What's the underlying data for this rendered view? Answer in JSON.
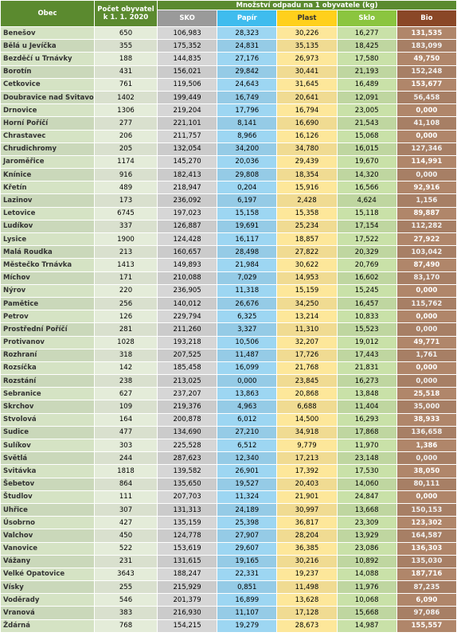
{
  "header": {
    "name": "Obec",
    "population": "Počet obyvatel k 1. 1. 2020",
    "group": "Množství odpadu na 1 obyvatele (kg)",
    "columns": [
      "SKO",
      "Papír",
      "Plast",
      "Sklo",
      "Bio"
    ]
  },
  "table": {
    "rows": [
      [
        "Benešov",
        "650",
        "106,983",
        "28,323",
        "30,226",
        "16,277",
        "131,535"
      ],
      [
        "Bělá u Jevíčka",
        "355",
        "175,352",
        "24,831",
        "35,135",
        "18,425",
        "183,099"
      ],
      [
        "Bezděčí u Trnávky",
        "188",
        "144,835",
        "27,176",
        "26,973",
        "17,580",
        "49,750"
      ],
      [
        "Borotín",
        "431",
        "156,021",
        "29,842",
        "30,441",
        "21,193",
        "152,248"
      ],
      [
        "Cetkovice",
        "761",
        "119,506",
        "24,643",
        "31,645",
        "16,489",
        "153,677"
      ],
      [
        "Doubravice nad Svitavou",
        "1402",
        "199,449",
        "16,749",
        "20,641",
        "12,091",
        "56,458"
      ],
      [
        "Drnovice",
        "1306",
        "219,204",
        "17,796",
        "16,794",
        "23,005",
        "0,000"
      ],
      [
        "Horní Poříčí",
        "277",
        "221,101",
        "8,141",
        "16,690",
        "21,543",
        "41,108"
      ],
      [
        "Chrastavec",
        "206",
        "211,757",
        "8,966",
        "16,126",
        "15,068",
        "0,000"
      ],
      [
        "Chrudichromy",
        "205",
        "132,054",
        "34,200",
        "34,780",
        "16,015",
        "127,346"
      ],
      [
        "Jaroměřice",
        "1174",
        "145,270",
        "20,036",
        "29,439",
        "19,670",
        "114,991"
      ],
      [
        "Knínice",
        "916",
        "182,413",
        "29,808",
        "18,354",
        "14,320",
        "0,000"
      ],
      [
        "Křetín",
        "489",
        "218,947",
        "0,204",
        "15,916",
        "16,566",
        "92,916"
      ],
      [
        "Lazinov",
        "173",
        "236,092",
        "6,197",
        "2,428",
        "4,624",
        "1,156"
      ],
      [
        "Letovice",
        "6745",
        "197,023",
        "15,158",
        "15,358",
        "15,118",
        "89,887"
      ],
      [
        "Ludíkov",
        "337",
        "126,887",
        "19,691",
        "25,234",
        "17,154",
        "112,282"
      ],
      [
        "Lysice",
        "1900",
        "124,428",
        "16,117",
        "18,857",
        "17,522",
        "27,922"
      ],
      [
        "Malá Roudka",
        "213",
        "160,657",
        "28,498",
        "27,822",
        "20,329",
        "103,042"
      ],
      [
        "Městečko Trnávka",
        "1413",
        "149,893",
        "21,984",
        "30,622",
        "20,769",
        "87,490"
      ],
      [
        "Míchov",
        "171",
        "210,088",
        "7,029",
        "14,953",
        "16,602",
        "83,170"
      ],
      [
        "Nýrov",
        "220",
        "236,905",
        "11,318",
        "15,159",
        "15,245",
        "0,000"
      ],
      [
        "Pamětice",
        "256",
        "140,012",
        "26,676",
        "34,250",
        "16,457",
        "115,762"
      ],
      [
        "Petrov",
        "126",
        "229,794",
        "6,325",
        "13,214",
        "10,833",
        "0,000"
      ],
      [
        "Prostřední Poříčí",
        "281",
        "211,260",
        "3,327",
        "11,310",
        "15,523",
        "0,000"
      ],
      [
        "Protivanov",
        "1028",
        "193,218",
        "10,506",
        "32,207",
        "19,012",
        "49,771"
      ],
      [
        "Rozhraní",
        "318",
        "207,525",
        "11,487",
        "17,726",
        "17,443",
        "1,761"
      ],
      [
        "Rozsíčka",
        "142",
        "185,458",
        "16,099",
        "21,768",
        "21,831",
        "0,000"
      ],
      [
        "Rozstání",
        "238",
        "213,025",
        "0,000",
        "23,845",
        "16,273",
        "0,000"
      ],
      [
        "Sebranice",
        "627",
        "237,207",
        "13,863",
        "20,868",
        "13,848",
        "25,518"
      ],
      [
        "Skrchov",
        "109",
        "219,376",
        "4,963",
        "6,688",
        "11,404",
        "35,000"
      ],
      [
        "Stvolová",
        "164",
        "200,878",
        "6,012",
        "14,500",
        "16,293",
        "38,933"
      ],
      [
        "Sudice",
        "477",
        "134,690",
        "27,210",
        "34,918",
        "17,868",
        "136,658"
      ],
      [
        "Sulíkov",
        "303",
        "225,528",
        "6,512",
        "9,779",
        "11,970",
        "1,386"
      ],
      [
        "Světlá",
        "244",
        "287,623",
        "12,340",
        "17,213",
        "23,148",
        "0,000"
      ],
      [
        "Svitávka",
        "1818",
        "139,582",
        "26,901",
        "17,392",
        "17,530",
        "38,050"
      ],
      [
        "Šebetov",
        "864",
        "135,650",
        "19,527",
        "20,403",
        "14,060",
        "80,111"
      ],
      [
        "Študlov",
        "111",
        "207,703",
        "11,324",
        "21,901",
        "24,847",
        "0,000"
      ],
      [
        "Uhřice",
        "307",
        "131,313",
        "24,189",
        "30,997",
        "13,668",
        "150,153"
      ],
      [
        "Úsobrno",
        "427",
        "135,159",
        "25,398",
        "36,817",
        "23,309",
        "123,302"
      ],
      [
        "Valchov",
        "450",
        "124,778",
        "27,907",
        "28,204",
        "13,929",
        "164,587"
      ],
      [
        "Vanovice",
        "522",
        "153,619",
        "29,607",
        "36,385",
        "23,086",
        "136,303"
      ],
      [
        "Vážany",
        "231",
        "131,615",
        "19,165",
        "30,216",
        "10,892",
        "135,030"
      ],
      [
        "Velké Opatovice",
        "3643",
        "188,247",
        "22,331",
        "19,237",
        "14,088",
        "187,716"
      ],
      [
        "Vísky",
        "255",
        "215,929",
        "0,851",
        "11,498",
        "11,976",
        "87,235"
      ],
      [
        "Voděrady",
        "546",
        "201,379",
        "16,899",
        "13,628",
        "10,068",
        "6,090"
      ],
      [
        "Vranová",
        "383",
        "216,930",
        "11,107",
        "17,128",
        "15,668",
        "97,086"
      ],
      [
        "Ždárná",
        "768",
        "154,215",
        "19,279",
        "28,673",
        "14,987",
        "155,557"
      ]
    ]
  }
}
